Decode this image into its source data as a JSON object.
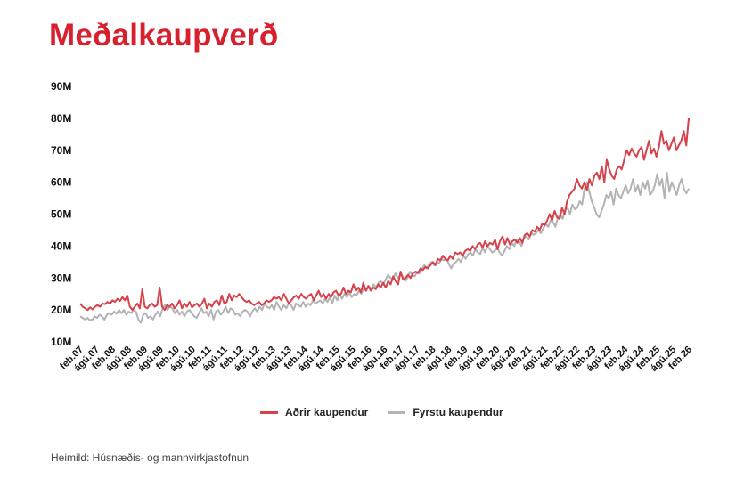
{
  "title": "Meðalkaupverð",
  "source": "Heimild: Húsnæðis- og mannvirkjastofnun",
  "colors": {
    "title": "#d8212f",
    "series_a": "#d8414b",
    "series_b": "#b3b3b3"
  },
  "chart_data": {
    "type": "line",
    "title": "Meðalkaupverð",
    "xlabel": "",
    "ylabel": "",
    "ylim": [
      10,
      90
    ],
    "y_ticks": [
      "10M",
      "20M",
      "30M",
      "40M",
      "50M",
      "60M",
      "70M",
      "80M",
      "90M"
    ],
    "x_start": "2007-02",
    "x_end": "2026-02",
    "x_ticks": [
      "feb.07",
      "ágú.07",
      "feb.08",
      "ágú.08",
      "feb.09",
      "ágú.09",
      "feb.10",
      "ágú.10",
      "feb.11",
      "ágú.11",
      "feb.12",
      "ágú.12",
      "feb.13",
      "ágú.13",
      "feb.14",
      "ágú.14",
      "feb.15",
      "ágú.15",
      "feb.16",
      "ágú.16",
      "feb.17",
      "ágú.17",
      "feb.18",
      "ágú.18",
      "feb.19",
      "ágú.19",
      "feb.20",
      "ágú.20",
      "feb.21",
      "ágú.21",
      "feb.22",
      "ágú.22",
      "feb.23",
      "ágú.23",
      "feb.24",
      "ágú.24",
      "feb.25",
      "ágú.25",
      "feb.26"
    ],
    "grid": false,
    "legend_position": "bottom",
    "series": [
      {
        "name": "Aðrir kaupendur",
        "values": [
          22.0,
          21.0,
          20.5,
          20.0,
          20.8,
          20.2,
          21.0,
          21.5,
          21.0,
          22.0,
          21.8,
          22.5,
          22.0,
          23.0,
          22.5,
          23.5,
          22.8,
          24.0,
          23.0,
          24.5,
          21.0,
          20.0,
          21.0,
          22.0,
          20.5,
          26.5,
          21.0,
          20.5,
          21.5,
          22.0,
          21.0,
          21.5,
          27.0,
          21.0,
          20.0,
          21.5,
          21.0,
          22.0,
          20.5,
          21.5,
          23.0,
          20.5,
          22.0,
          21.0,
          22.5,
          20.8,
          21.5,
          22.0,
          21.0,
          22.0,
          23.5,
          20.5,
          22.0,
          21.0,
          22.5,
          23.0,
          21.5,
          24.5,
          22.0,
          22.5,
          25.0,
          23.0,
          24.5,
          24.0,
          25.0,
          24.0,
          23.0,
          22.5,
          23.0,
          22.0,
          21.5,
          22.0,
          22.5,
          21.5,
          22.0,
          23.0,
          22.5,
          23.0,
          24.0,
          23.5,
          24.0,
          23.0,
          25.0,
          23.5,
          22.0,
          23.0,
          24.0,
          24.5,
          23.5,
          25.0,
          24.0,
          23.5,
          24.5,
          25.0,
          23.0,
          24.5,
          26.0,
          24.0,
          25.0,
          23.5,
          25.0,
          24.0,
          25.5,
          26.0,
          24.5,
          25.0,
          27.0,
          25.0,
          26.0,
          25.5,
          28.0,
          26.0,
          27.0,
          25.5,
          28.5,
          26.0,
          27.5,
          26.0,
          27.0,
          26.5,
          28.0,
          27.0,
          28.5,
          27.0,
          29.0,
          28.0,
          30.5,
          29.0,
          28.0,
          32.0,
          29.5,
          30.0,
          31.0,
          30.0,
          31.5,
          32.0,
          31.5,
          33.0,
          32.5,
          33.5,
          33.0,
          34.0,
          35.0,
          34.0,
          36.0,
          35.5,
          37.0,
          36.0,
          35.5,
          37.0,
          36.0,
          38.0,
          37.5,
          38.0,
          37.0,
          38.5,
          39.0,
          38.5,
          40.0,
          39.0,
          40.5,
          41.0,
          39.5,
          41.5,
          40.0,
          41.0,
          40.5,
          42.0,
          39.0,
          41.5,
          43.0,
          40.5,
          42.5,
          40.5,
          41.5,
          42.0,
          41.0,
          42.5,
          41.0,
          43.5,
          44.0,
          43.0,
          45.0,
          44.5,
          46.0,
          45.0,
          47.0,
          46.5,
          48.0,
          50.0,
          48.0,
          51.0,
          49.0,
          48.5,
          52.0,
          50.0,
          54.0,
          56.0,
          57.0,
          58.0,
          61.0,
          59.0,
          58.0,
          60.0,
          57.5,
          61.0,
          59.0,
          62.0,
          63.0,
          61.0,
          65.0,
          60.0,
          67.0,
          64.0,
          62.0,
          61.0,
          64.0,
          65.0,
          64.0,
          67.0,
          70.0,
          68.5,
          70.5,
          69.0,
          68.0,
          70.0,
          71.0,
          67.0,
          70.0,
          73.0,
          69.0,
          70.5,
          68.0,
          71.0,
          76.0,
          72.0,
          73.0,
          70.0,
          72.0,
          74.0,
          70.0,
          71.5,
          73.0,
          76.0,
          71.5,
          80.0
        ]
      },
      {
        "name": "Fyrstu kaupendur",
        "values": [
          18.0,
          17.5,
          17.0,
          17.5,
          16.8,
          17.0,
          18.0,
          17.5,
          18.5,
          18.0,
          17.0,
          18.5,
          19.0,
          18.5,
          19.5,
          18.8,
          20.0,
          19.0,
          20.0,
          18.5,
          19.5,
          19.0,
          20.0,
          19.5,
          17.0,
          16.0,
          18.5,
          19.0,
          17.5,
          18.0,
          17.0,
          18.5,
          19.5,
          18.0,
          20.5,
          21.5,
          20.0,
          21.0,
          20.5,
          19.0,
          20.0,
          18.5,
          19.5,
          18.0,
          19.5,
          20.0,
          19.0,
          18.0,
          17.5,
          19.0,
          20.5,
          19.0,
          19.5,
          18.0,
          20.0,
          17.0,
          19.5,
          20.0,
          18.5,
          19.5,
          21.0,
          19.0,
          20.5,
          20.0,
          18.5,
          19.0,
          18.0,
          19.5,
          20.0,
          19.5,
          18.0,
          19.5,
          20.5,
          19.5,
          21.0,
          20.0,
          22.0,
          21.0,
          20.5,
          21.5,
          20.0,
          22.5,
          21.0,
          20.0,
          21.5,
          20.5,
          22.0,
          21.5,
          20.0,
          22.0,
          21.5,
          21.0,
          22.5,
          21.0,
          22.0,
          21.5,
          23.0,
          22.0,
          22.5,
          23.0,
          22.0,
          23.5,
          22.5,
          24.0,
          22.0,
          24.5,
          23.0,
          25.0,
          23.5,
          25.0,
          24.0,
          25.5,
          24.0,
          25.0,
          24.5,
          26.0,
          25.0,
          27.0,
          26.0,
          27.5,
          26.5,
          28.0,
          27.0,
          28.5,
          29.0,
          28.0,
          29.5,
          31.0,
          30.0,
          29.5,
          31.5,
          30.0,
          31.0,
          30.5,
          29.0,
          30.0,
          32.0,
          31.0,
          30.5,
          32.0,
          31.5,
          33.0,
          34.0,
          33.0,
          34.5,
          35.0,
          34.0,
          35.0,
          34.5,
          36.0,
          35.5,
          36.0,
          34.5,
          33.0,
          34.5,
          35.0,
          36.0,
          35.0,
          37.0,
          36.0,
          37.5,
          38.0,
          37.0,
          39.0,
          38.0,
          37.5,
          39.5,
          38.0,
          40.0,
          39.0,
          38.0,
          38.5,
          39.5,
          38.0,
          37.0,
          38.5,
          40.0,
          39.0,
          41.0,
          40.0,
          42.0,
          41.5,
          40.0,
          42.5,
          43.0,
          42.0,
          44.0,
          43.5,
          44.0,
          45.0,
          44.0,
          45.5,
          47.0,
          46.0,
          48.0,
          47.5,
          46.0,
          49.0,
          50.0,
          48.5,
          51.0,
          52.0,
          50.0,
          53.0,
          51.5,
          52.0,
          54.0,
          53.0,
          58.0,
          60.0,
          57.0,
          54.0,
          52.0,
          50.0,
          49.0,
          51.0,
          53.0,
          56.0,
          55.0,
          57.0,
          53.0,
          58.0,
          56.0,
          55.0,
          57.0,
          59.0,
          56.5,
          58.0,
          61.0,
          57.0,
          59.0,
          56.0,
          60.0,
          58.0,
          60.5,
          56.0,
          57.0,
          59.0,
          62.5,
          59.0,
          61.0,
          55.0,
          63.0,
          57.0,
          60.0,
          58.0,
          56.0,
          59.0,
          61.0,
          58.0,
          56.5,
          58.0
        ]
      }
    ]
  }
}
